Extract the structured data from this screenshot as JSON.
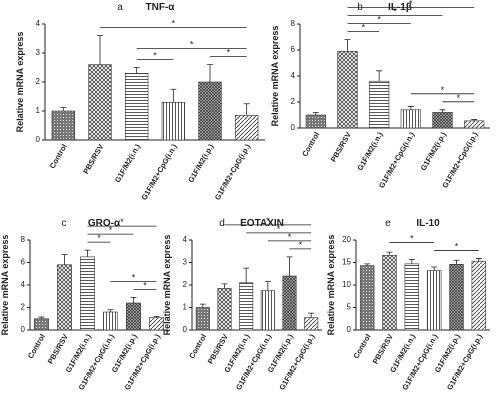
{
  "chart_data": [
    {
      "type": "bar",
      "panel_label": "a",
      "title": "TNF-α",
      "y_label": "Relative mRNA express",
      "categories": [
        "Control",
        "PBS/RSV",
        "G1F/M2(i.n.)",
        "G1F/M2+CpG(i.n.)",
        "G1F/M2(i.p.)",
        "G1F/M2+CpG(i.p.)"
      ],
      "values": [
        1.0,
        2.6,
        2.3,
        1.3,
        2.0,
        0.85
      ],
      "errors": [
        0.12,
        1.0,
        0.2,
        0.45,
        0.6,
        0.4
      ],
      "ylim": [
        0,
        4
      ],
      "yticks": [
        0,
        1,
        2,
        3,
        4
      ],
      "brackets": [
        {
          "from": 1,
          "to": 5,
          "label": "*"
        },
        {
          "from": 2,
          "to": 5,
          "label": "*"
        },
        {
          "from": 2,
          "to": 3,
          "label": "*"
        },
        {
          "from": 4,
          "to": 5,
          "label": "*"
        }
      ]
    },
    {
      "type": "bar",
      "panel_label": "b",
      "title": "IL-1β",
      "y_label": "Relative mRNA express",
      "categories": [
        "Control",
        "PBS/RSV",
        "G1F/M2(i.n.)",
        "G1F/M2+CpG(i.n.)",
        "G1F/M2(i.p.)",
        "G1F/M2+CpG(i.p.)"
      ],
      "values": [
        1.0,
        5.9,
        3.6,
        1.4,
        1.2,
        0.55
      ],
      "errors": [
        0.2,
        0.9,
        0.8,
        0.25,
        0.2,
        0.1
      ],
      "ylim": [
        0,
        8
      ],
      "yticks": [
        0,
        2,
        4,
        6,
        8
      ],
      "brackets": [
        {
          "from": 1,
          "to": 5,
          "label": "*"
        },
        {
          "from": 1,
          "to": 4,
          "label": "*"
        },
        {
          "from": 1,
          "to": 3,
          "label": "*"
        },
        {
          "from": 1,
          "to": 2,
          "label": "*"
        },
        {
          "from": 3,
          "to": 5,
          "label": "*"
        },
        {
          "from": 4,
          "to": 5,
          "label": "*"
        }
      ]
    },
    {
      "type": "bar",
      "panel_label": "c",
      "title": "GRO-α",
      "y_label": "Relative mRNA express",
      "categories": [
        "Control",
        "PBS/RSV",
        "G1F/M2(i.n.)",
        "G1F/M2+CpG(i.n.)",
        "G1F/M2(i.p.)",
        "G1F/M2+CpG(i.p.)"
      ],
      "values": [
        1.0,
        5.8,
        6.5,
        1.6,
        2.4,
        1.1
      ],
      "errors": [
        0.15,
        0.9,
        0.6,
        0.2,
        0.5,
        0.1
      ],
      "ylim": [
        0,
        8
      ],
      "yticks": [
        0,
        2,
        4,
        6,
        8
      ],
      "brackets": [
        {
          "from": 2,
          "to": 5,
          "label": "*"
        },
        {
          "from": 2,
          "to": 4,
          "label": "*"
        },
        {
          "from": 2,
          "to": 3,
          "label": "*"
        },
        {
          "from": 3,
          "to": 5,
          "label": "*"
        },
        {
          "from": 4,
          "to": 5,
          "label": "*"
        }
      ]
    },
    {
      "type": "bar",
      "panel_label": "d",
      "title": "EOTAXIN",
      "y_label": "Relative mRNA express",
      "categories": [
        "Control",
        "PBS/RSV",
        "G1F/M2(i.n.)",
        "G1F/M2+CpG(i.n.)",
        "G1F/M2(i.p.)",
        "G1F/M2+CpG(i.p.)"
      ],
      "values": [
        1.0,
        1.85,
        2.1,
        1.75,
        2.4,
        0.55
      ],
      "errors": [
        0.15,
        0.2,
        0.65,
        0.4,
        0.85,
        0.2
      ],
      "ylim": [
        0,
        4
      ],
      "yticks": [
        0,
        1,
        2,
        3,
        4
      ],
      "brackets": [
        {
          "from": 1,
          "to": 5,
          "label": "*"
        },
        {
          "from": 2,
          "to": 5,
          "label": "*"
        },
        {
          "from": 3,
          "to": 5,
          "label": "*"
        },
        {
          "from": 4,
          "to": 5,
          "label": "*"
        }
      ]
    },
    {
      "type": "bar",
      "panel_label": "e",
      "title": "IL-10",
      "y_label": "Relative mRNA express",
      "categories": [
        "Control",
        "PBS/RSV",
        "G1F/M2(i.n.)",
        "G1F/M2+CpG(i.n.)",
        "G1F/M2(i.p.)",
        "G1F/M2+CpG(i.p.)"
      ],
      "values": [
        14.3,
        16.6,
        14.7,
        13.2,
        14.6,
        15.3
      ],
      "errors": [
        0.4,
        0.7,
        1.0,
        0.8,
        0.9,
        0.6
      ],
      "ylim": [
        0,
        20
      ],
      "yticks": [
        0,
        5,
        10,
        15,
        20
      ],
      "brackets": [
        {
          "from": 1,
          "to": 3,
          "label": "*"
        },
        {
          "from": 3,
          "to": 5,
          "label": "*"
        }
      ]
    }
  ]
}
